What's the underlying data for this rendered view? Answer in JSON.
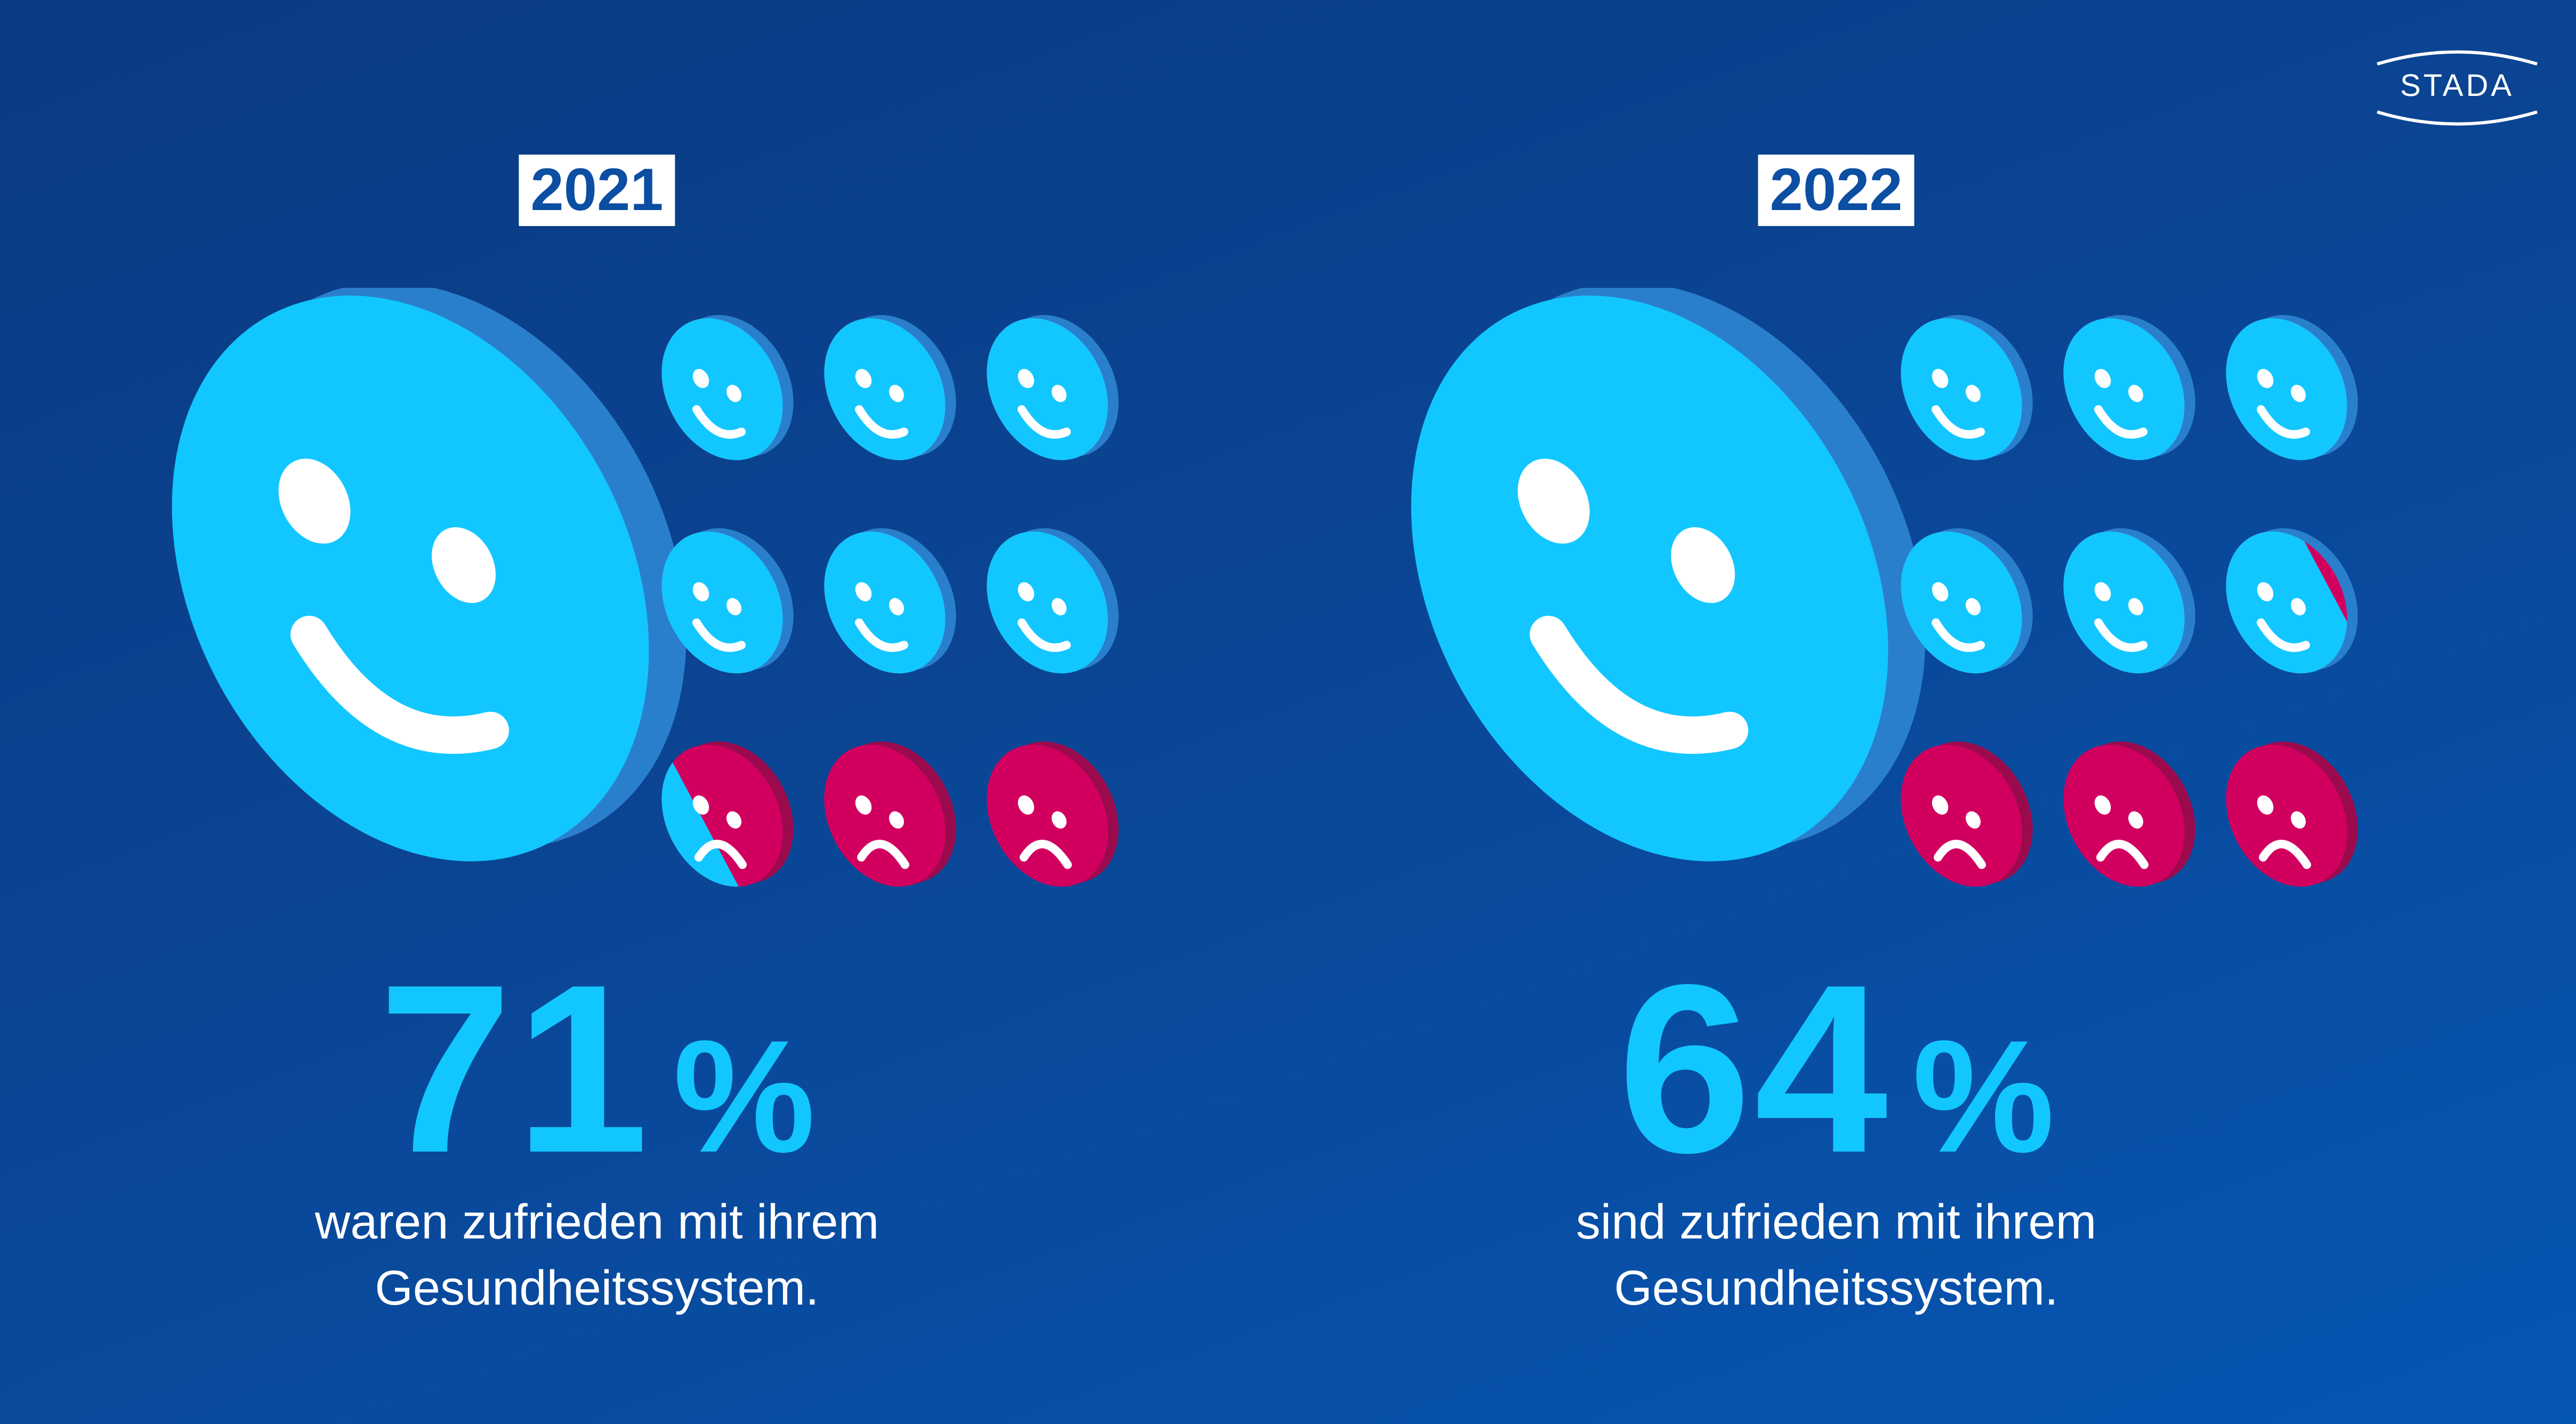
{
  "brand": {
    "logo_text": "STADA"
  },
  "panels": [
    {
      "year": "2021",
      "percent_value": "71",
      "percent_symbol": "%",
      "caption_line1": "waren zufrieden mit ihrem",
      "caption_line2": "Gesundheitssystem.",
      "satisfied_share": 0.71
    },
    {
      "year": "2022",
      "percent_value": "64",
      "percent_symbol": "%",
      "caption_line1": "sind zufrieden mit ihrem",
      "caption_line2": "Gesundheitssystem.",
      "satisfied_share": 0.64
    }
  ],
  "colors": {
    "happy_face": "#12c7ff",
    "happy_edge": "#2a7fcc",
    "sad_face": "#d1005f",
    "sad_edge": "#9c0a4e",
    "features": "#ffffff"
  },
  "icons": {
    "big_face": "smiley-icon",
    "small_face_happy": "smiley-icon",
    "small_face_sad": "sad-face-icon"
  }
}
